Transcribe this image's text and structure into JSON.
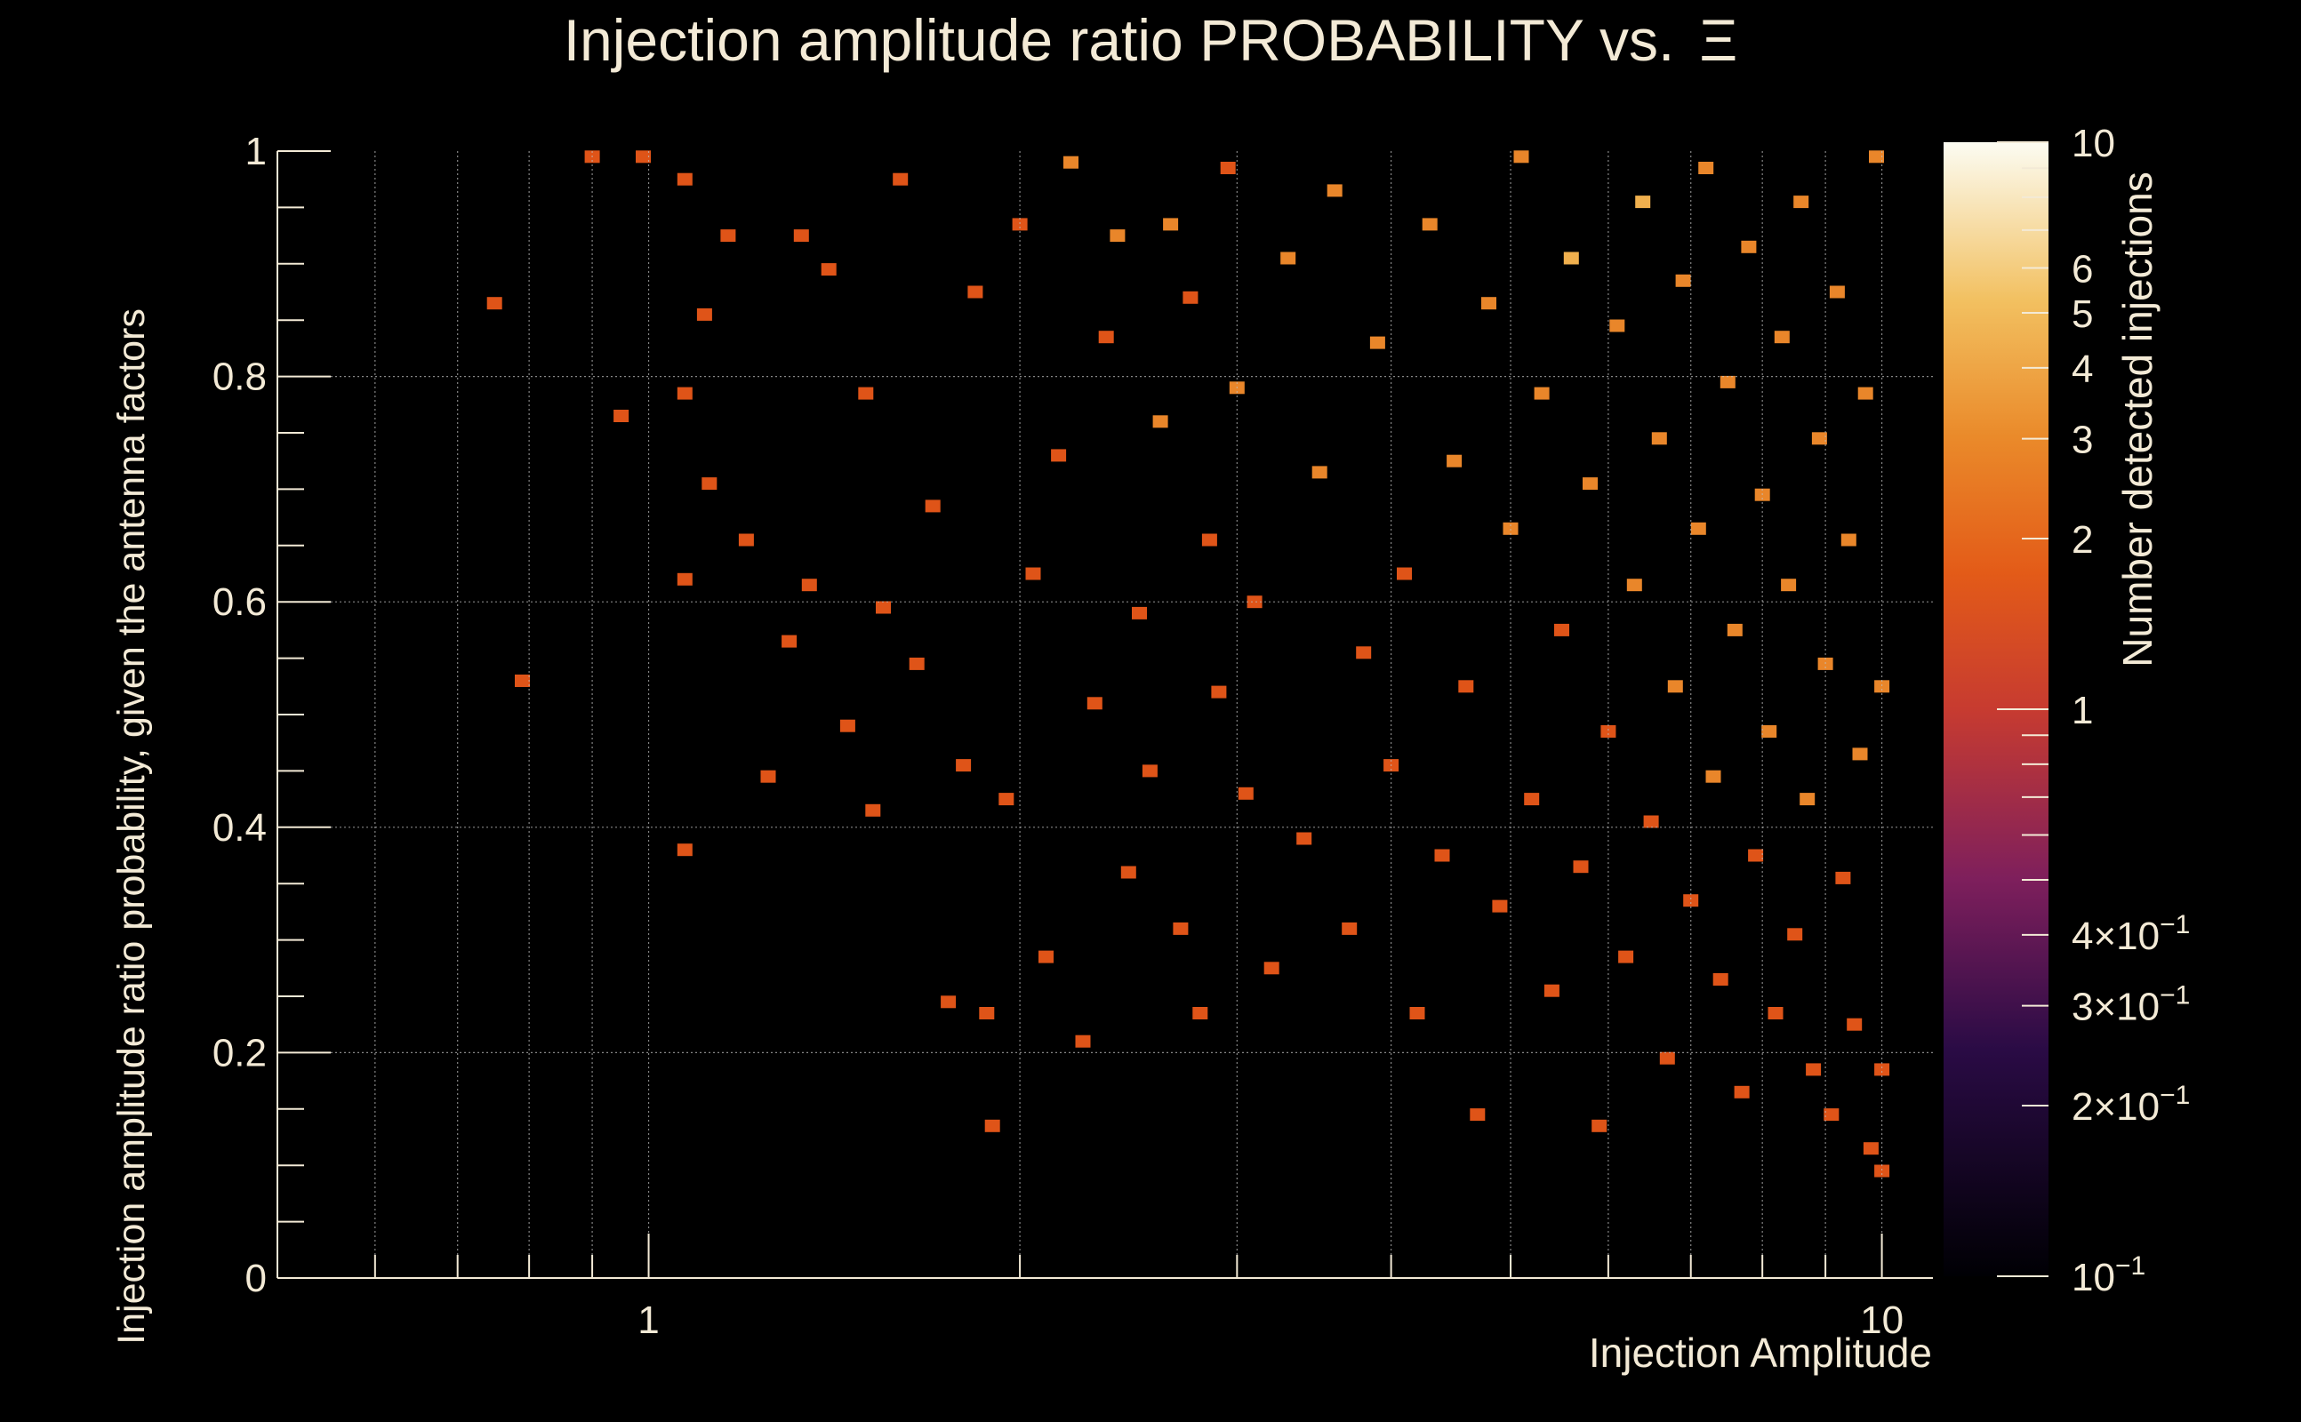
{
  "chart_data": {
    "type": "heatmap",
    "title": "Injection amplitude ratio PROBABILITY vs.",
    "title_symbol": "Ξ",
    "xlabel": "Injection Amplitude",
    "ylabel": "Injection amplitude ratio probability, given the antenna factors",
    "zlabel": "Number detected injections",
    "x_scale": "log",
    "x_range": [
      0.5,
      11
    ],
    "y_range": [
      0,
      1
    ],
    "z_scale": "log",
    "z_range": [
      0.1,
      10
    ],
    "grid": true,
    "x_ticks": [
      {
        "value": 1,
        "label": "1"
      },
      {
        "value": 10,
        "label": "10"
      }
    ],
    "y_ticks": [
      {
        "value": 0,
        "label": "0"
      },
      {
        "value": 0.2,
        "label": "0.2"
      },
      {
        "value": 0.4,
        "label": "0.4"
      },
      {
        "value": 0.6,
        "label": "0.6"
      },
      {
        "value": 0.8,
        "label": "0.8"
      },
      {
        "value": 1,
        "label": "1"
      }
    ],
    "z_ticks": [
      {
        "value": 0.1,
        "label": "10",
        "exp": "−1"
      },
      {
        "value": 0.2,
        "label": "2×10",
        "exp": "−1"
      },
      {
        "value": 0.3,
        "label": "3×10",
        "exp": "−1"
      },
      {
        "value": 0.4,
        "label": "4×10",
        "exp": "−1"
      },
      {
        "value": 1,
        "label": "1",
        "exp": ""
      },
      {
        "value": 2,
        "label": "2",
        "exp": ""
      },
      {
        "value": 3,
        "label": "3",
        "exp": ""
      },
      {
        "value": 4,
        "label": "4",
        "exp": ""
      },
      {
        "value": 5,
        "label": "5",
        "exp": ""
      },
      {
        "value": 6,
        "label": "6",
        "exp": ""
      },
      {
        "value": 10,
        "label": "10",
        "exp": ""
      }
    ],
    "cells": [
      [
        0.75,
        0.865,
        1
      ],
      [
        0.79,
        0.53,
        1
      ],
      [
        0.9,
        0.995,
        1
      ],
      [
        0.95,
        0.765,
        1
      ],
      [
        0.99,
        0.995,
        1
      ],
      [
        1.07,
        0.975,
        1
      ],
      [
        1.07,
        0.785,
        1
      ],
      [
        1.07,
        0.62,
        1
      ],
      [
        1.07,
        0.38,
        1
      ],
      [
        1.11,
        0.855,
        1
      ],
      [
        1.12,
        0.705,
        1
      ],
      [
        1.16,
        0.925,
        1
      ],
      [
        1.2,
        0.655,
        1
      ],
      [
        1.25,
        0.445,
        1
      ],
      [
        1.3,
        0.565,
        1
      ],
      [
        1.33,
        0.925,
        1
      ],
      [
        1.35,
        0.615,
        1
      ],
      [
        1.4,
        0.895,
        1
      ],
      [
        1.45,
        0.49,
        1
      ],
      [
        1.5,
        0.785,
        1
      ],
      [
        1.52,
        0.415,
        1
      ],
      [
        1.55,
        0.595,
        1
      ],
      [
        1.6,
        0.975,
        1
      ],
      [
        1.65,
        0.545,
        1
      ],
      [
        1.7,
        0.685,
        1
      ],
      [
        1.75,
        0.245,
        1
      ],
      [
        1.8,
        0.455,
        1
      ],
      [
        1.84,
        0.875,
        1
      ],
      [
        1.88,
        0.235,
        1
      ],
      [
        1.9,
        0.135,
        1
      ],
      [
        1.95,
        0.425,
        1
      ],
      [
        2.0,
        0.935,
        1
      ],
      [
        2.05,
        0.625,
        1
      ],
      [
        2.1,
        0.285,
        1
      ],
      [
        2.15,
        0.73,
        1
      ],
      [
        2.2,
        0.99,
        2
      ],
      [
        2.25,
        0.21,
        1
      ],
      [
        2.3,
        0.51,
        1
      ],
      [
        2.35,
        0.835,
        1
      ],
      [
        2.4,
        0.925,
        2
      ],
      [
        2.45,
        0.36,
        1
      ],
      [
        2.5,
        0.59,
        1
      ],
      [
        2.55,
        0.45,
        1
      ],
      [
        2.6,
        0.76,
        2
      ],
      [
        2.65,
        0.935,
        2
      ],
      [
        2.7,
        0.31,
        1
      ],
      [
        2.75,
        0.87,
        1
      ],
      [
        2.8,
        0.235,
        1
      ],
      [
        2.85,
        0.655,
        1
      ],
      [
        2.9,
        0.52,
        1
      ],
      [
        2.95,
        0.985,
        1
      ],
      [
        3.0,
        0.79,
        2
      ],
      [
        3.05,
        0.43,
        1
      ],
      [
        3.1,
        0.6,
        1
      ],
      [
        3.2,
        0.275,
        1
      ],
      [
        3.3,
        0.905,
        2
      ],
      [
        3.4,
        0.39,
        1
      ],
      [
        3.5,
        0.715,
        2
      ],
      [
        3.6,
        0.965,
        2
      ],
      [
        3.7,
        0.31,
        1
      ],
      [
        3.8,
        0.555,
        1
      ],
      [
        3.9,
        0.83,
        2
      ],
      [
        4.0,
        0.455,
        1
      ],
      [
        4.1,
        0.625,
        1
      ],
      [
        4.2,
        0.235,
        1
      ],
      [
        4.3,
        0.935,
        2
      ],
      [
        4.4,
        0.375,
        1
      ],
      [
        4.5,
        0.725,
        2
      ],
      [
        4.6,
        0.525,
        1
      ],
      [
        4.7,
        0.145,
        1
      ],
      [
        4.8,
        0.865,
        2
      ],
      [
        4.9,
        0.33,
        1
      ],
      [
        5.0,
        0.665,
        2
      ],
      [
        5.1,
        0.995,
        2
      ],
      [
        5.2,
        0.425,
        1
      ],
      [
        5.3,
        0.785,
        2
      ],
      [
        5.4,
        0.255,
        1
      ],
      [
        5.5,
        0.575,
        1
      ],
      [
        5.6,
        0.905,
        3
      ],
      [
        5.7,
        0.365,
        1
      ],
      [
        5.8,
        0.705,
        2
      ],
      [
        5.9,
        0.135,
        1
      ],
      [
        6.0,
        0.485,
        1
      ],
      [
        6.1,
        0.845,
        2
      ],
      [
        6.2,
        0.285,
        1
      ],
      [
        6.3,
        0.615,
        2
      ],
      [
        6.4,
        0.955,
        3
      ],
      [
        6.5,
        0.405,
        1
      ],
      [
        6.6,
        0.745,
        2
      ],
      [
        6.7,
        0.195,
        1
      ],
      [
        6.8,
        0.525,
        2
      ],
      [
        6.9,
        0.885,
        2
      ],
      [
        7.0,
        0.335,
        1
      ],
      [
        7.1,
        0.665,
        2
      ],
      [
        7.2,
        0.985,
        2
      ],
      [
        7.3,
        0.445,
        2
      ],
      [
        7.4,
        0.265,
        1
      ],
      [
        7.5,
        0.795,
        2
      ],
      [
        7.6,
        0.575,
        2
      ],
      [
        7.7,
        0.165,
        1
      ],
      [
        7.8,
        0.915,
        2
      ],
      [
        7.9,
        0.375,
        1
      ],
      [
        8.0,
        0.695,
        2
      ],
      [
        8.1,
        0.485,
        2
      ],
      [
        8.2,
        0.235,
        1
      ],
      [
        8.3,
        0.835,
        2
      ],
      [
        8.4,
        0.615,
        2
      ],
      [
        8.5,
        0.305,
        1
      ],
      [
        8.6,
        0.955,
        2
      ],
      [
        8.7,
        0.425,
        2
      ],
      [
        8.8,
        0.185,
        1
      ],
      [
        8.9,
        0.745,
        2
      ],
      [
        9.0,
        0.545,
        2
      ],
      [
        9.1,
        0.145,
        1
      ],
      [
        9.2,
        0.875,
        2
      ],
      [
        9.3,
        0.355,
        1
      ],
      [
        9.4,
        0.655,
        2
      ],
      [
        9.5,
        0.225,
        1
      ],
      [
        9.6,
        0.465,
        2
      ],
      [
        9.7,
        0.785,
        2
      ],
      [
        9.8,
        0.115,
        1
      ],
      [
        9.9,
        0.995,
        2
      ],
      [
        10.0,
        0.095,
        1
      ],
      [
        10.0,
        0.185,
        1
      ],
      [
        10.0,
        0.525,
        2
      ]
    ]
  }
}
